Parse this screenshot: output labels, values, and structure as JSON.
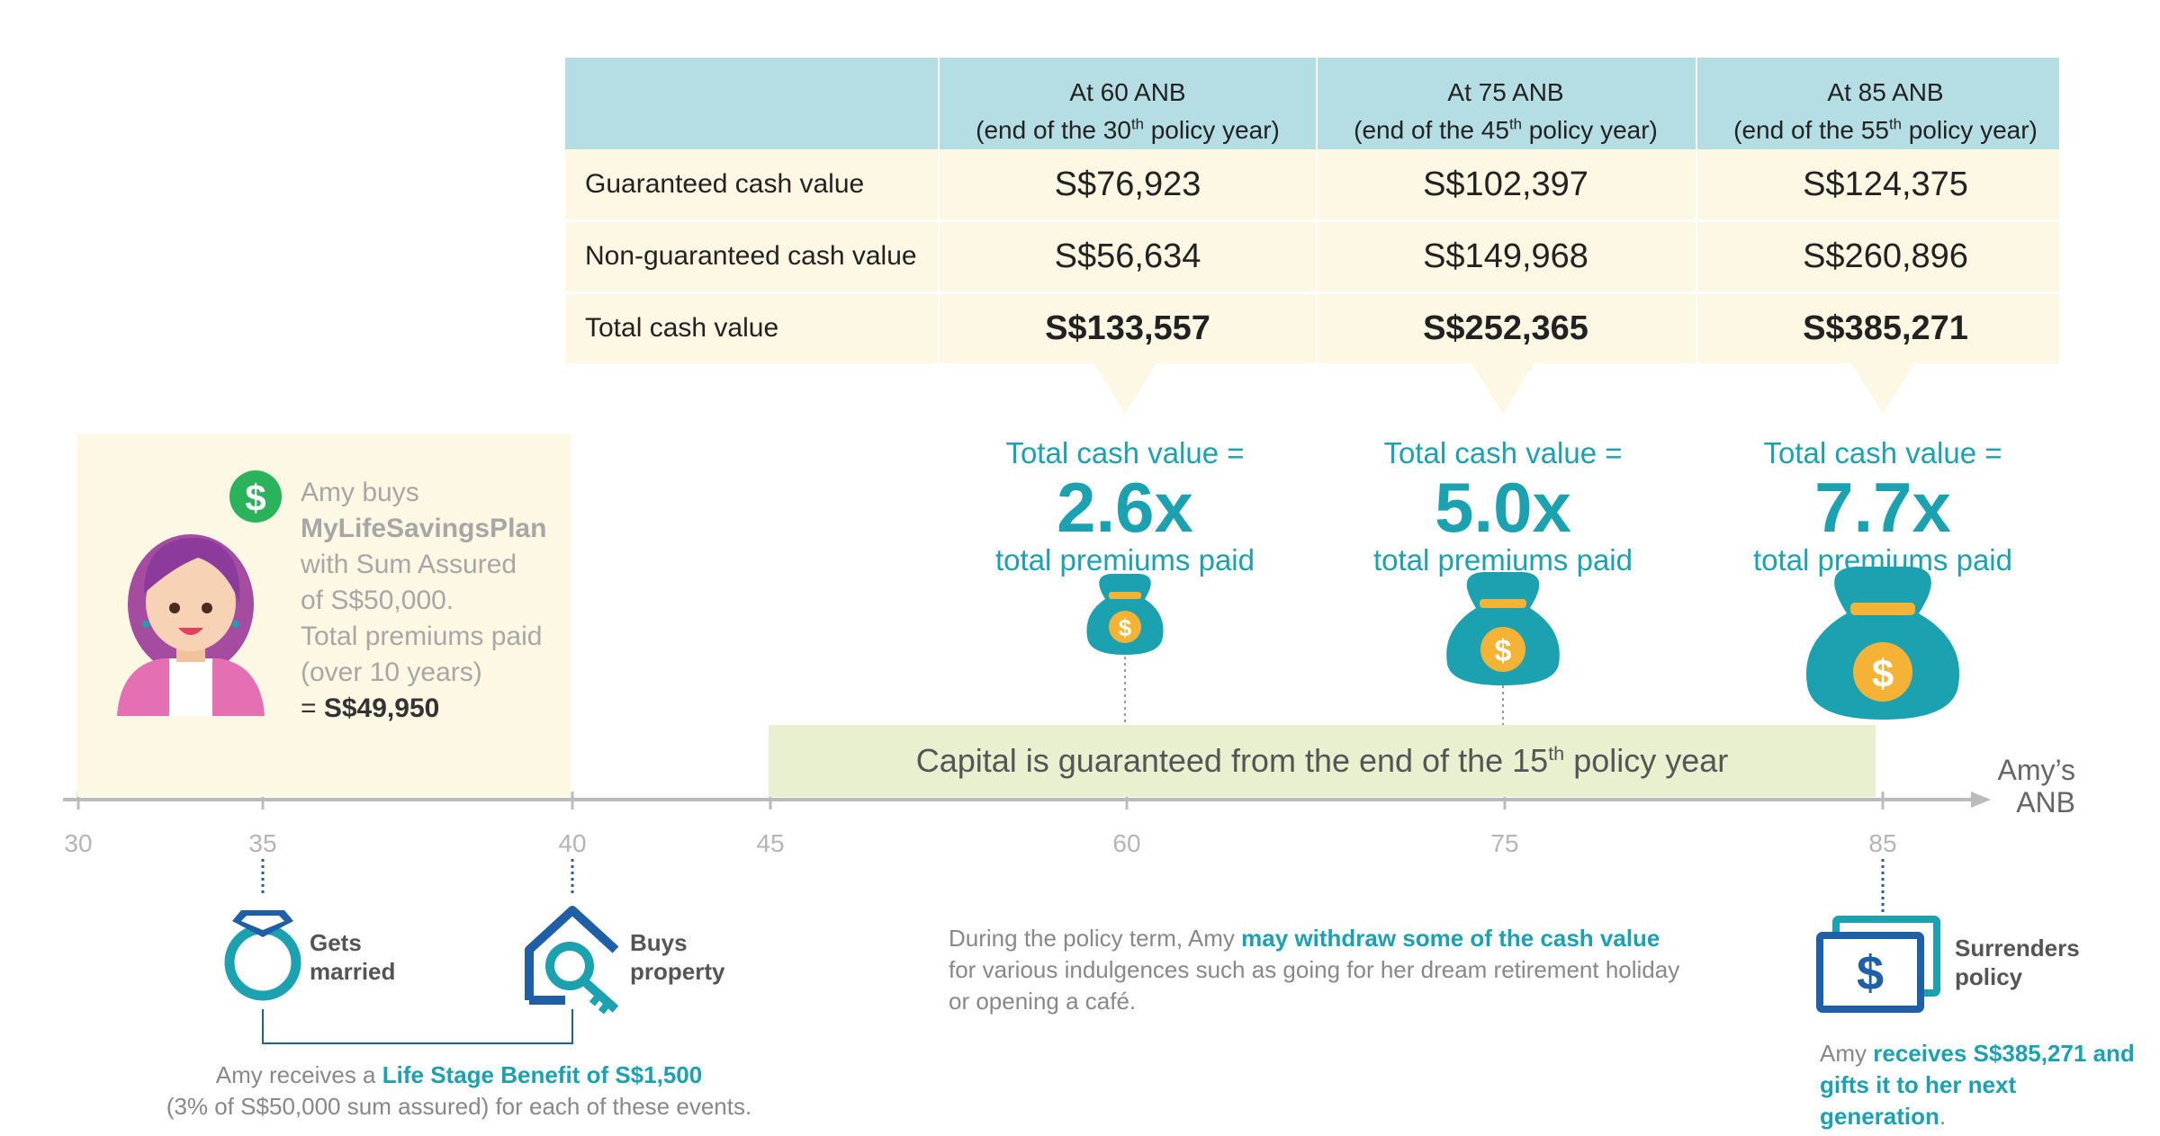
{
  "table": {
    "headers": [
      {
        "line1": "At 60 ANB",
        "line2_pre": "(end of the 30",
        "line2_sup": "th",
        "line2_post": " policy year)"
      },
      {
        "line1": "At 75 ANB",
        "line2_pre": "(end of the 45",
        "line2_sup": "th",
        "line2_post": " policy year)"
      },
      {
        "line1": "At 85 ANB",
        "line2_pre": "(end of the 55",
        "line2_sup": "th",
        "line2_post": " policy year)"
      }
    ],
    "rows": [
      {
        "label": "Guaranteed cash value",
        "values": [
          "S$76,923",
          "S$102,397",
          "S$124,375"
        ]
      },
      {
        "label": "Non-guaranteed cash value",
        "values": [
          "S$56,634",
          "S$149,968",
          "S$260,896"
        ]
      },
      {
        "label": "Total cash value",
        "values": [
          "S$133,557",
          "S$252,365",
          "S$385,271"
        ]
      }
    ]
  },
  "multiples": [
    {
      "line1": "Total cash value =",
      "value": "2.6x",
      "line2": "total premiums paid"
    },
    {
      "line1": "Total cash value =",
      "value": "5.0x",
      "line2": "total premiums paid"
    },
    {
      "line1": "Total cash value =",
      "value": "7.7x",
      "line2": "total premiums paid"
    }
  ],
  "amy": {
    "line1": "Amy buys",
    "plan": "MyLifeSavingsPlan",
    "line3": "with Sum Assured",
    "line4": "of S$50,000.",
    "line5": "Total premiums paid",
    "line6": "(over 10 years)",
    "total_prefix": "= ",
    "total": "S$49,950"
  },
  "capital": {
    "pre": "Capital is guaranteed from the end of the 15",
    "sup": "th",
    "post": " policy year"
  },
  "axis": {
    "label_line1": "Amy’s",
    "label_line2": "ANB",
    "ticks": [
      "30",
      "35",
      "40",
      "45",
      "60",
      "75",
      "85"
    ]
  },
  "events": {
    "married": {
      "line1": "Gets",
      "line2": "married"
    },
    "property": {
      "line1": "Buys",
      "line2": "property"
    },
    "surrender": {
      "line1": "Surrenders",
      "line2": "policy"
    }
  },
  "life_stage_note": {
    "pre": "Amy receives a ",
    "highlight": "Life Stage Benefit of S$1,500",
    "line2": "(3% of S$50,000 sum assured) for each of these events."
  },
  "withdraw_note": {
    "pre": "During the policy term, Amy ",
    "highlight": "may withdraw some of the cash value",
    "line2": "for various indulgences such as going for her dream retirement holiday",
    "line3": "or opening a café."
  },
  "surrender_note": {
    "pre": "Amy ",
    "highlight1": "receives S$385,271 and",
    "highlight2": "gifts it to her next generation",
    "post": "."
  },
  "colors": {
    "teal": "#1ba1b0",
    "header_blue": "#b4dde4",
    "cream": "#fdf8e3",
    "band_green": "#e8f0d0",
    "navy": "#1f5fa8",
    "green": "#2ab35a"
  }
}
